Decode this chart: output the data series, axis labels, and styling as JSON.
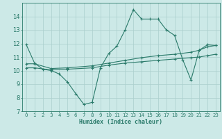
{
  "xlabel": "Humidex (Indice chaleur)",
  "xlim": [
    -0.5,
    23.5
  ],
  "ylim": [
    7,
    15
  ],
  "yticks": [
    7,
    8,
    9,
    10,
    11,
    12,
    13,
    14
  ],
  "xticks": [
    0,
    1,
    2,
    3,
    4,
    5,
    6,
    7,
    8,
    9,
    10,
    11,
    12,
    13,
    14,
    15,
    16,
    17,
    18,
    19,
    20,
    21,
    22,
    23
  ],
  "bg_color": "#cce9e7",
  "grid_color": "#aacfcd",
  "line_color": "#2a7a6a",
  "line1_x": [
    0,
    1,
    2,
    3,
    4,
    5,
    6,
    7,
    8,
    9,
    10,
    11,
    12,
    13,
    14,
    15,
    16,
    17,
    18,
    19,
    20,
    21,
    22,
    23
  ],
  "line1_y": [
    11.9,
    10.55,
    10.1,
    10.0,
    9.75,
    9.15,
    8.3,
    7.5,
    7.65,
    10.2,
    11.25,
    11.8,
    13.0,
    14.5,
    13.8,
    13.8,
    13.8,
    13.0,
    12.6,
    10.8,
    9.3,
    11.5,
    11.9,
    11.85
  ],
  "line2_x": [
    0,
    1,
    3,
    5,
    8,
    10,
    12,
    14,
    16,
    18,
    20,
    21,
    22,
    23
  ],
  "line2_y": [
    10.5,
    10.5,
    10.15,
    10.2,
    10.35,
    10.55,
    10.75,
    10.95,
    11.1,
    11.2,
    11.35,
    11.5,
    11.75,
    11.85
  ],
  "line3_x": [
    0,
    1,
    3,
    5,
    8,
    10,
    12,
    14,
    16,
    18,
    20,
    21,
    22,
    23
  ],
  "line3_y": [
    10.2,
    10.2,
    10.05,
    10.1,
    10.2,
    10.4,
    10.55,
    10.65,
    10.75,
    10.85,
    10.95,
    11.0,
    11.1,
    11.2
  ]
}
